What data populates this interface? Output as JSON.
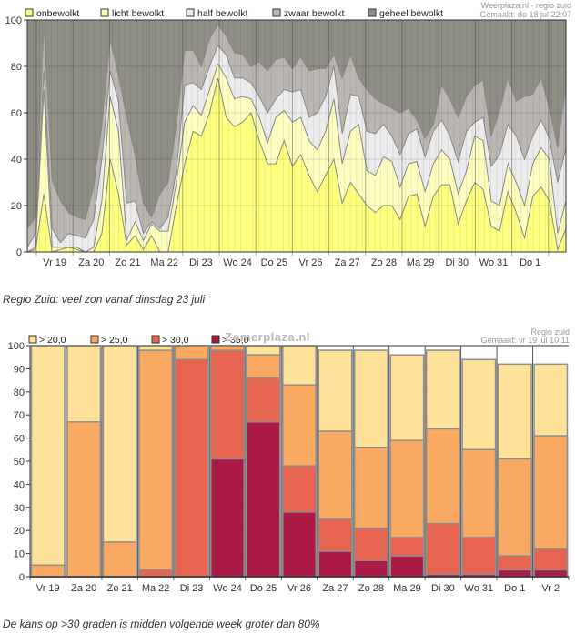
{
  "chart_data": [
    {
      "type": "area",
      "stacked": true,
      "title": "",
      "source_label": "Weerplaza.nl - regio zuid",
      "made_label": "Gemaakt: do 18 jul 22:07",
      "xlabel": "",
      "ylabel": "",
      "ylim": [
        0,
        100
      ],
      "yticks": [
        0,
        20,
        40,
        60,
        80,
        100
      ],
      "grid": true,
      "legend_position": "top",
      "day_labels": [
        "Vr 19",
        "Za 20",
        "Zo 21",
        "Ma 22",
        "Di 23",
        "Wo 24",
        "Do 25",
        "Vr 26",
        "Za 27",
        "Zo 28",
        "Ma 29",
        "Di 30",
        "Wo 31",
        "Do 1"
      ],
      "points_per_day": 6,
      "series": [
        {
          "name": "onbewolkt",
          "color": "#ffff80"
        },
        {
          "name": "licht bewolkt",
          "color": "#ffffc0"
        },
        {
          "name": "half bewolkt",
          "color": "#ececec"
        },
        {
          "name": "zwaar bewolkt",
          "color": "#bcb6b3"
        },
        {
          "name": "geheel bewolkt",
          "color": "#8f8f86"
        }
      ],
      "cumulative_tops_note": "each row = [onbewolkt top, licht bewolkt top, half bewolkt top, zwaar bewolkt top] in %, geheel bewolkt fills to 100; one row per 4-hour step",
      "cumulative": [
        [
          0,
          0,
          2,
          10
        ],
        [
          1,
          2,
          8,
          15
        ],
        [
          25,
          70,
          78,
          98
        ],
        [
          0,
          2,
          10,
          31
        ],
        [
          1,
          2,
          4,
          22
        ],
        [
          2,
          2,
          8,
          17
        ],
        [
          1,
          2,
          7,
          15
        ],
        [
          0,
          0,
          6,
          14
        ],
        [
          0,
          2,
          14,
          28
        ],
        [
          8,
          22,
          40,
          55
        ],
        [
          40,
          67,
          78,
          92
        ],
        [
          25,
          52,
          65,
          76
        ],
        [
          3,
          5,
          21,
          58
        ],
        [
          7,
          13,
          22,
          42
        ],
        [
          1,
          5,
          8,
          21
        ],
        [
          7,
          12,
          13,
          15
        ],
        [
          0,
          9,
          10,
          25
        ],
        [
          0,
          9,
          15,
          30
        ],
        [
          20,
          30,
          35,
          55
        ],
        [
          38,
          56,
          72,
          87
        ],
        [
          52,
          63,
          73,
          87
        ],
        [
          50,
          59,
          70,
          80
        ],
        [
          60,
          70,
          80,
          92
        ],
        [
          75,
          81,
          89,
          98
        ],
        [
          58,
          75,
          85,
          93
        ],
        [
          54,
          66,
          75,
          86
        ],
        [
          56,
          67,
          75,
          85
        ],
        [
          60,
          66,
          73,
          80
        ],
        [
          48,
          58,
          67,
          82
        ],
        [
          38,
          47,
          60,
          78
        ],
        [
          38,
          58,
          66,
          83
        ],
        [
          48,
          61,
          70,
          84
        ],
        [
          37,
          56,
          69,
          79
        ],
        [
          42,
          58,
          70,
          84
        ],
        [
          33,
          48,
          58,
          78
        ],
        [
          26,
          44,
          60,
          79
        ],
        [
          33,
          52,
          67,
          79
        ],
        [
          40,
          66,
          80,
          85
        ],
        [
          21,
          38,
          51,
          75
        ],
        [
          30,
          52,
          68,
          85
        ],
        [
          25,
          55,
          67,
          75
        ],
        [
          20,
          35,
          52,
          70
        ],
        [
          17,
          33,
          51,
          66
        ],
        [
          20,
          41,
          55,
          64
        ],
        [
          20,
          39,
          50,
          62
        ],
        [
          14,
          28,
          42,
          60
        ],
        [
          24,
          38,
          51,
          62
        ],
        [
          25,
          39,
          53,
          57
        ],
        [
          11,
          26,
          41,
          49
        ],
        [
          24,
          38,
          52,
          55
        ],
        [
          29,
          44,
          57,
          72
        ],
        [
          29,
          40,
          50,
          66
        ],
        [
          12,
          25,
          39,
          58
        ],
        [
          22,
          35,
          52,
          67
        ],
        [
          30,
          50,
          56,
          72
        ],
        [
          27,
          48,
          58,
          74
        ],
        [
          11,
          22,
          37,
          50
        ],
        [
          9,
          20,
          42,
          61
        ],
        [
          26,
          38,
          55,
          75
        ],
        [
          17,
          30,
          50,
          65
        ],
        [
          6,
          20,
          40,
          67
        ],
        [
          24,
          38,
          50,
          68
        ],
        [
          28,
          45,
          57,
          75
        ],
        [
          22,
          40,
          49,
          62
        ],
        [
          1,
          8,
          30,
          45
        ],
        [
          10,
          22,
          45,
          72
        ]
      ],
      "cumulative_days_note": "rows trimmed to visible plot; values estimated from gridlines"
    },
    {
      "type": "bar",
      "stacked": true,
      "title": "",
      "watermark": "Zomerplaza.nl",
      "source_label": "Regio zuid",
      "made_label": "Gemaakt: vr 19 jul 10:11",
      "xlabel": "",
      "ylabel": "",
      "ylim": [
        0,
        100
      ],
      "yticks": [
        0,
        10,
        20,
        30,
        40,
        50,
        60,
        70,
        80,
        90,
        100
      ],
      "grid": true,
      "legend_position": "top-left",
      "categories": [
        "Vr 19",
        "Za 20",
        "Zo 21",
        "Ma 22",
        "Di 23",
        "Wo 24",
        "Do 25",
        "Vr 26",
        "Za 27",
        "Zo 28",
        "Ma 29",
        "Di 30",
        "Wo 31",
        "Do 1",
        "Vr 2"
      ],
      "series": [
        {
          "name": "> 20,0",
          "color": "#fee29a",
          "values": [
            100,
            100,
            100,
            100,
            100,
            100,
            100,
            100,
            98,
            98,
            96,
            98,
            94,
            92,
            92
          ]
        },
        {
          "name": "> 25,0",
          "color": "#f9a962",
          "values": [
            5,
            67,
            15,
            98,
            100,
            100,
            96,
            83,
            63,
            56,
            59,
            64,
            55,
            51,
            61
          ]
        },
        {
          "name": "> 30,0",
          "color": "#e76550",
          "values": [
            0,
            0,
            0,
            3,
            94,
            98,
            86,
            48,
            25,
            21,
            17,
            23,
            17,
            9,
            12
          ]
        },
        {
          "name": "> 35,0",
          "color": "#ab1a45",
          "values": [
            0,
            0,
            0,
            0,
            0,
            51,
            67,
            28,
            11,
            7,
            9,
            1,
            1,
            3,
            3
          ]
        }
      ]
    }
  ],
  "captions": {
    "first": "Regio Zuid: veel zon vanaf dinsdag 23 juli",
    "second": "De kans op >30 graden is midden volgende week groter dan 80%"
  }
}
